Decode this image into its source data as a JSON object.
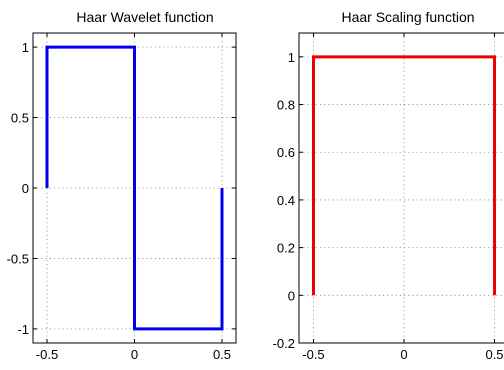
{
  "chart_data": [
    {
      "type": "line",
      "title": "Haar Wavelet function",
      "xlabel": "",
      "ylabel": "",
      "xlim": [
        -0.58,
        0.58
      ],
      "ylim": [
        -1.1,
        1.1
      ],
      "xticks": [
        -0.5,
        0,
        0.5
      ],
      "xtick_labels": [
        "-0.5",
        "0",
        "0.5"
      ],
      "yticks": [
        -1,
        -0.5,
        0,
        0.5,
        1
      ],
      "ytick_labels": [
        "-1",
        "-0.5",
        "0",
        "0.5",
        "1"
      ],
      "grid": true,
      "series": [
        {
          "color": "#0000ee",
          "x": [
            -0.5,
            -0.5,
            0,
            0,
            0.5,
            0.5
          ],
          "y": [
            0,
            1,
            1,
            -1,
            -1,
            0
          ]
        }
      ]
    },
    {
      "type": "line",
      "title": "Haar Scaling function",
      "xlabel": "",
      "ylabel": "",
      "xlim": [
        -0.58,
        0.58
      ],
      "ylim": [
        -0.2,
        1.1
      ],
      "xticks": [
        -0.5,
        0,
        0.5
      ],
      "xtick_labels": [
        "-0.5",
        "0",
        "0.5"
      ],
      "yticks": [
        -0.2,
        0,
        0.2,
        0.4,
        0.6,
        0.8,
        1
      ],
      "ytick_labels": [
        "-0.2",
        "0",
        "0.2",
        "0.4",
        "0.6",
        "0.8",
        "1"
      ],
      "grid": true,
      "series": [
        {
          "color": "#ee0000",
          "x": [
            -0.5,
            -0.5,
            0.5,
            0.5
          ],
          "y": [
            0,
            1,
            1,
            0
          ]
        }
      ]
    }
  ]
}
